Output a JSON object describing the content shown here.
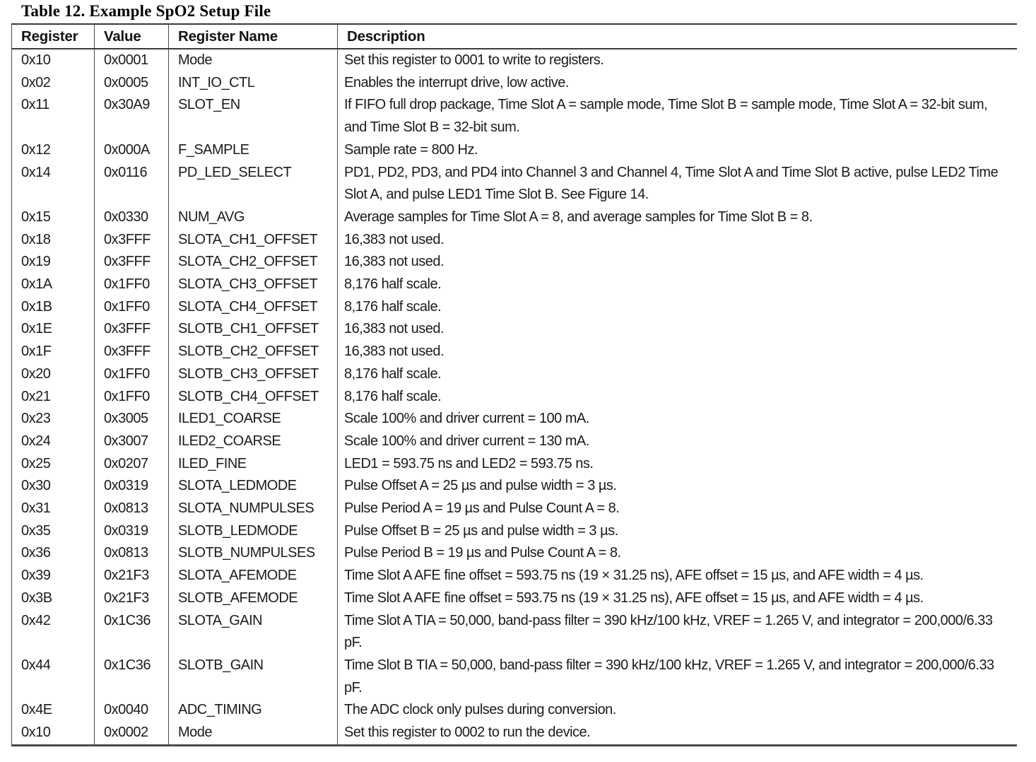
{
  "title": "Table 12. Example SpO2 Setup File",
  "table": {
    "columns": [
      "Register",
      "Value",
      "Register Name",
      "Description"
    ],
    "rows": [
      {
        "register": "0x10",
        "value": "0x0001",
        "name": "Mode",
        "description": "Set this register to 0001 to write to registers."
      },
      {
        "register": "0x02",
        "value": "0x0005",
        "name": "INT_IO_CTL",
        "description": "Enables the interrupt drive, low active."
      },
      {
        "register": "0x11",
        "value": "0x30A9",
        "name": "SLOT_EN",
        "description": "If FIFO full drop package, Time Slot A = sample mode, Time Slot B = sample mode, Time Slot A = 32-bit sum, and Time Slot B = 32-bit sum."
      },
      {
        "register": "0x12",
        "value": "0x000A",
        "name": "F_SAMPLE",
        "description": "Sample rate = 800 Hz."
      },
      {
        "register": "0x14",
        "value": "0x0116",
        "name": "PD_LED_SELECT",
        "description": "PD1, PD2, PD3, and PD4 into Channel 3 and Channel 4, Time Slot A and Time Slot B active, pulse LED2 Time Slot A, and pulse LED1 Time Slot B. See Figure 14."
      },
      {
        "register": "0x15",
        "value": "0x0330",
        "name": "NUM_AVG",
        "description": "Average samples for Time Slot A = 8, and average samples for Time Slot B = 8."
      },
      {
        "register": "0x18",
        "value": "0x3FFF",
        "name": "SLOTA_CH1_OFFSET",
        "description": "16,383 not used."
      },
      {
        "register": "0x19",
        "value": "0x3FFF",
        "name": "SLOTA_CH2_OFFSET",
        "description": "16,383 not used."
      },
      {
        "register": "0x1A",
        "value": "0x1FF0",
        "name": "SLOTA_CH3_OFFSET",
        "description": "8,176 half scale."
      },
      {
        "register": "0x1B",
        "value": "0x1FF0",
        "name": "SLOTA_CH4_OFFSET",
        "description": "8,176 half scale."
      },
      {
        "register": "0x1E",
        "value": "0x3FFF",
        "name": "SLOTB_CH1_OFFSET",
        "description": "16,383 not used."
      },
      {
        "register": "0x1F",
        "value": "0x3FFF",
        "name": "SLOTB_CH2_OFFSET",
        "description": "16,383 not used."
      },
      {
        "register": "0x20",
        "value": "0x1FF0",
        "name": "SLOTB_CH3_OFFSET",
        "description": "8,176 half scale."
      },
      {
        "register": "0x21",
        "value": "0x1FF0",
        "name": "SLOTB_CH4_OFFSET",
        "description": "8,176 half scale."
      },
      {
        "register": "0x23",
        "value": "0x3005",
        "name": "ILED1_COARSE",
        "description": "Scale 100% and driver current = 100 mA."
      },
      {
        "register": "0x24",
        "value": "0x3007",
        "name": "ILED2_COARSE",
        "description": "Scale 100% and driver current = 130 mA."
      },
      {
        "register": "0x25",
        "value": "0x0207",
        "name": "ILED_FINE",
        "description": "LED1 = 593.75 ns and LED2 = 593.75 ns."
      },
      {
        "register": "0x30",
        "value": "0x0319",
        "name": "SLOTA_LEDMODE",
        "description": "Pulse Offset A = 25 µs and pulse width = 3 µs."
      },
      {
        "register": "0x31",
        "value": "0x0813",
        "name": "SLOTA_NUMPULSES",
        "description": "Pulse Period A = 19 µs and Pulse Count A = 8."
      },
      {
        "register": "0x35",
        "value": "0x0319",
        "name": "SLOTB_LEDMODE",
        "description": "Pulse Offset B = 25 µs and pulse width = 3 µs."
      },
      {
        "register": "0x36",
        "value": "0x0813",
        "name": "SLOTB_NUMPULSES",
        "description": "Pulse Period B = 19 µs and Pulse Count A = 8."
      },
      {
        "register": "0x39",
        "value": "0x21F3",
        "name": "SLOTA_AFEMODE",
        "description": "Time Slot A AFE fine offset = 593.75 ns (19 × 31.25 ns), AFE offset = 15 µs, and AFE width = 4 µs."
      },
      {
        "register": "0x3B",
        "value": "0x21F3",
        "name": "SLOTB_AFEMODE",
        "description": "Time Slot A AFE fine offset = 593.75 ns (19 × 31.25 ns), AFE offset = 15 µs, and AFE width = 4 µs."
      },
      {
        "register": "0x42",
        "value": "0x1C36",
        "name": "SLOTA_GAIN",
        "description": "Time Slot A TIA = 50,000, band-pass filter = 390 kHz/100 kHz, VREF = 1.265 V, and integrator = 200,000/6.33 pF."
      },
      {
        "register": "0x44",
        "value": "0x1C36",
        "name": "SLOTB_GAIN",
        "description": "Time Slot B TIA = 50,000, band-pass filter = 390 kHz/100 kHz, VREF = 1.265 V, and integrator = 200,000/6.33 pF."
      },
      {
        "register": "0x4E",
        "value": "0x0040",
        "name": "ADC_TIMING",
        "description": "The ADC clock only pulses during conversion."
      },
      {
        "register": "0x10",
        "value": "0x0002",
        "name": "Mode",
        "description": "Set this register to 0002 to run the device."
      }
    ]
  }
}
